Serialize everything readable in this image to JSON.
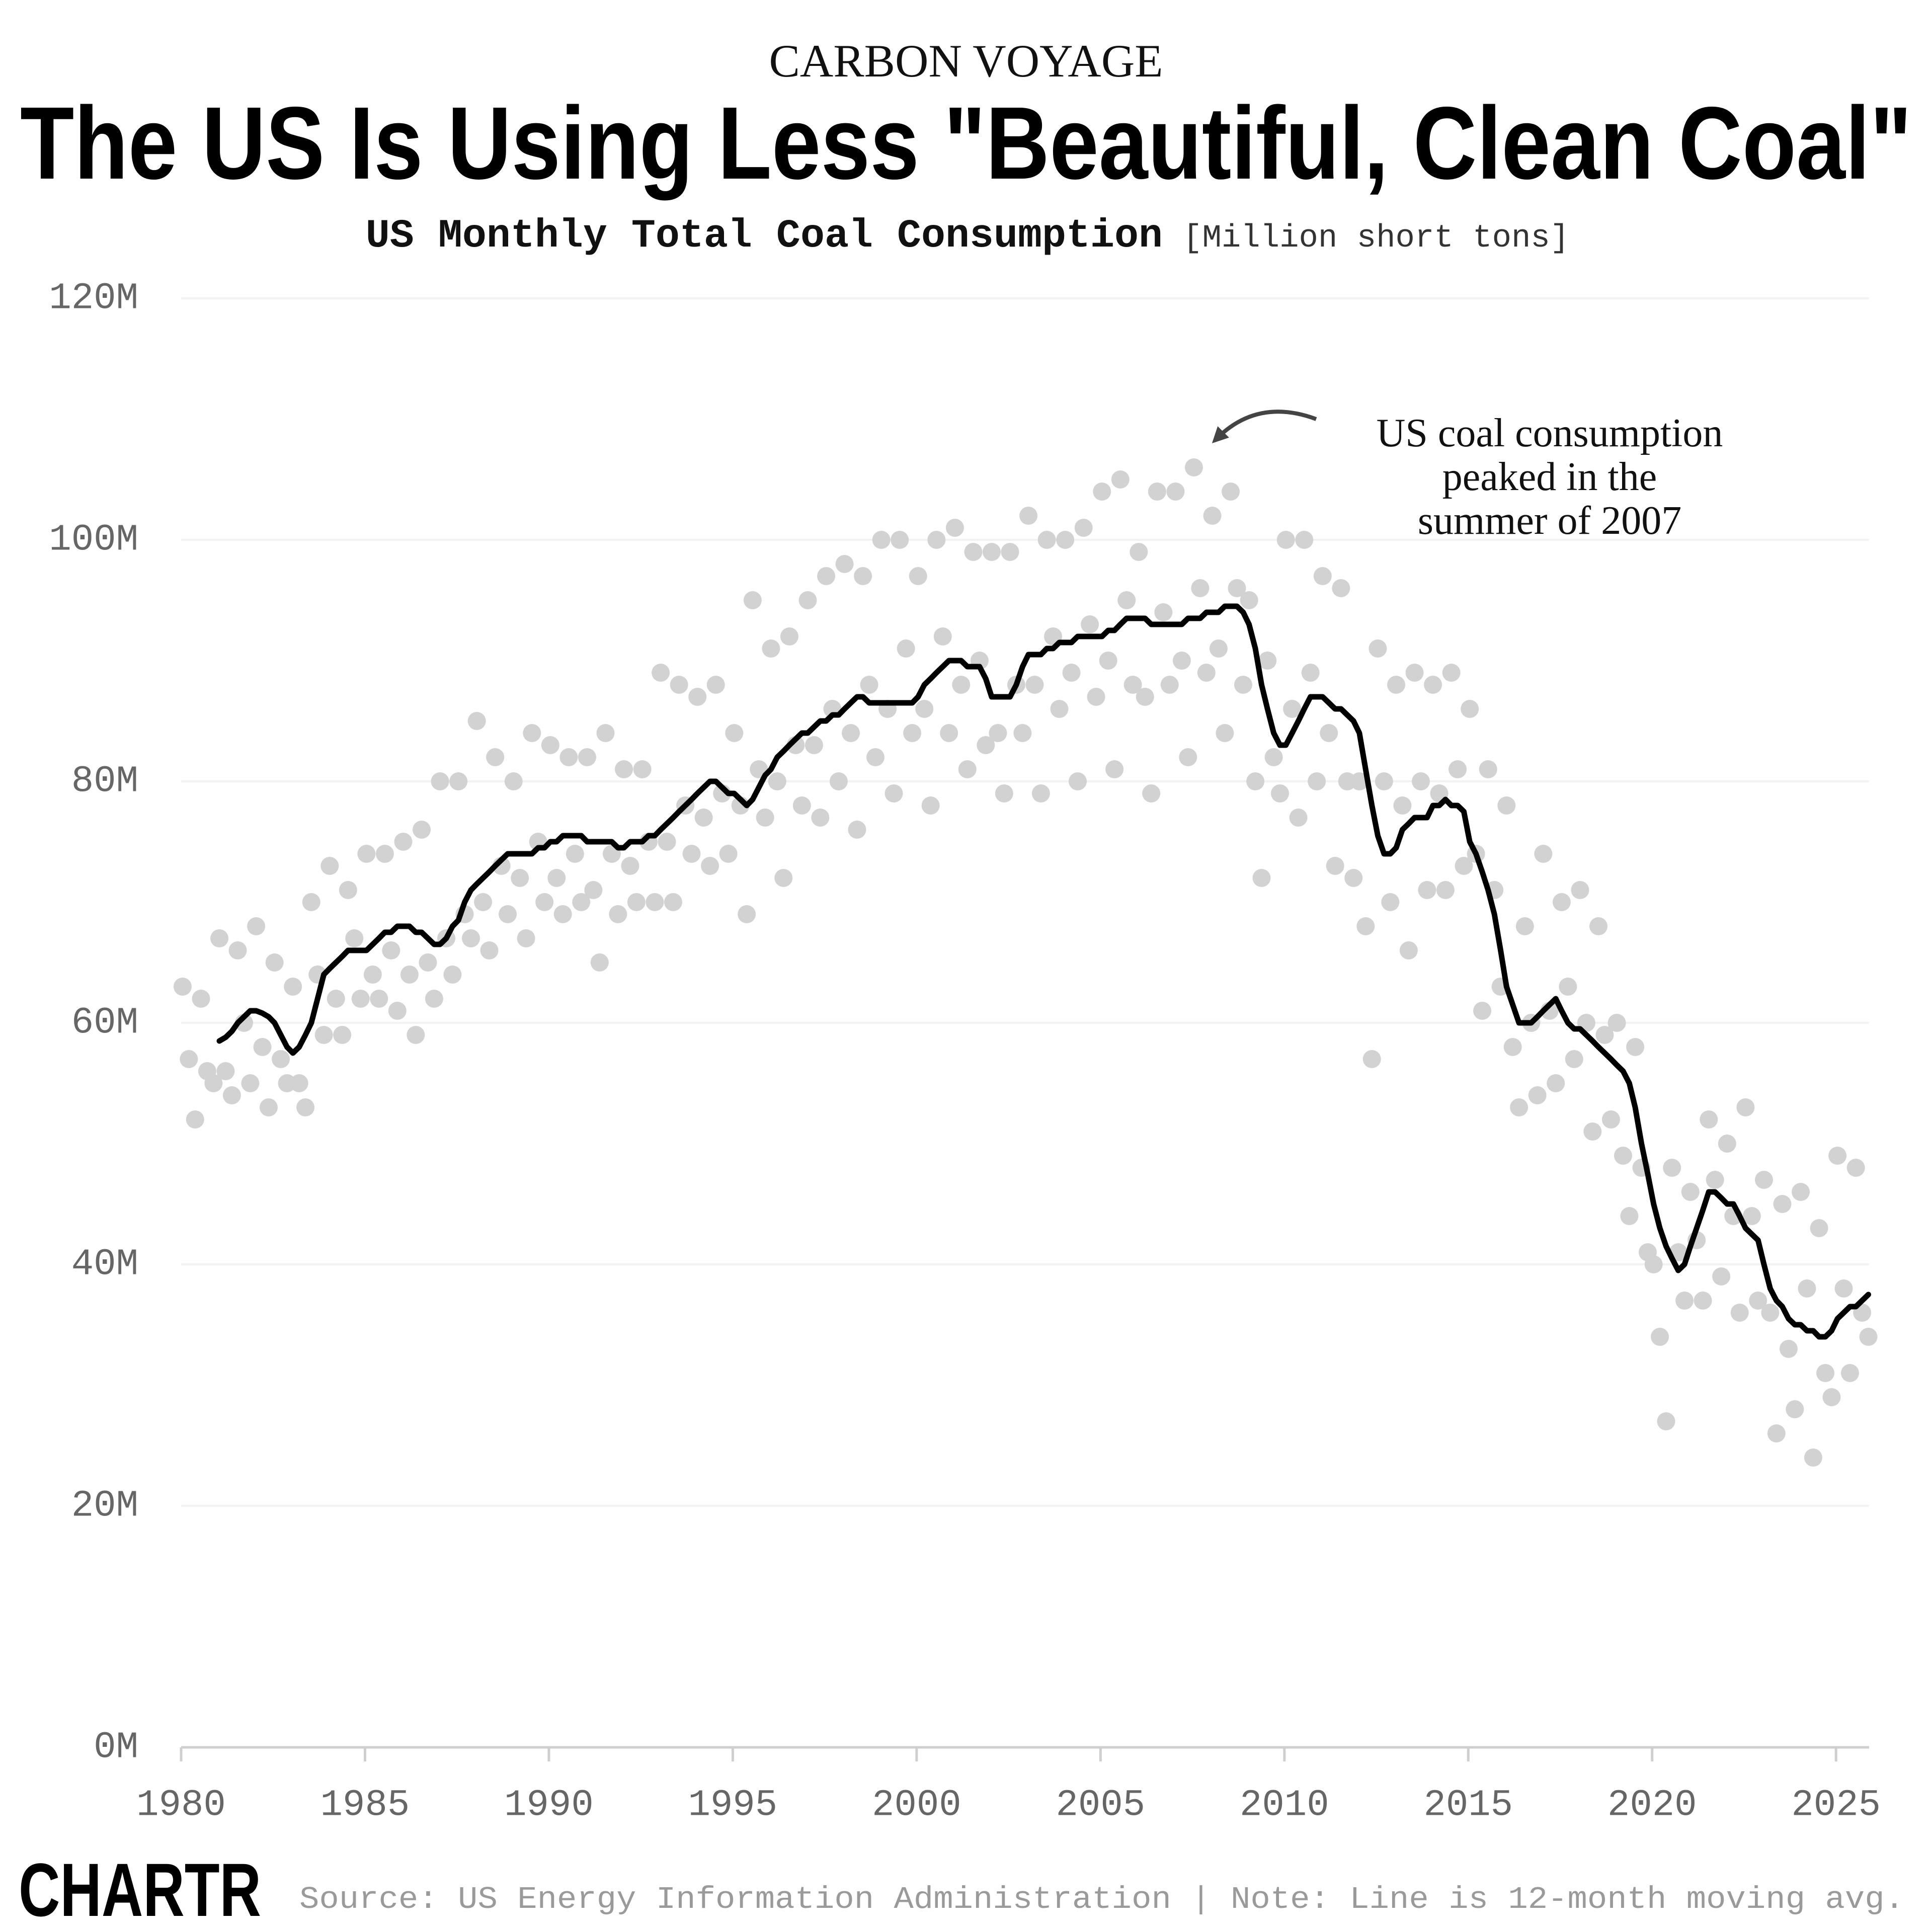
{
  "chart_data": {
    "type": "scatter",
    "kicker": "CARBON VOYAGE",
    "title": "The US Is Using Less \"Beautiful, Clean Coal\"",
    "subtitle": "US Monthly Total Coal Consumption",
    "unit": "[Million short tons]",
    "annotation": [
      "US coal consumption",
      "peaked in the",
      "summer of 2007"
    ],
    "logo": "CHARTR",
    "source": "Source: US Energy Information Administration | Note: Line is 12-month moving avg.",
    "xlim": [
      1980,
      2025.9
    ],
    "xticks": [
      1980,
      1985,
      1990,
      1995,
      2000,
      2005,
      2010,
      2015,
      2020,
      2025
    ],
    "ylim": [
      0,
      120
    ],
    "yticks": [
      {
        "value": 0,
        "label": "0M"
      },
      {
        "value": 20,
        "label": "20M"
      },
      {
        "value": 40,
        "label": "40M"
      },
      {
        "value": 60,
        "label": "60M"
      },
      {
        "value": 80,
        "label": "80M"
      },
      {
        "value": 100,
        "label": "100M"
      },
      {
        "value": 120,
        "label": "120M"
      }
    ],
    "grid": true,
    "x": [
      1980.04,
      1980.21,
      1980.38,
      1980.54,
      1980.71,
      1980.88,
      1981.04,
      1981.21,
      1981.38,
      1981.54,
      1981.71,
      1981.88,
      1982.04,
      1982.21,
      1982.38,
      1982.54,
      1982.71,
      1982.88,
      1983.04,
      1983.21,
      1983.38,
      1983.54,
      1983.71,
      1983.88,
      1984.04,
      1984.21,
      1984.38,
      1984.54,
      1984.71,
      1984.88,
      1985.04,
      1985.21,
      1985.38,
      1985.54,
      1985.71,
      1985.88,
      1986.04,
      1986.21,
      1986.38,
      1986.54,
      1986.71,
      1986.88,
      1987.04,
      1987.21,
      1987.38,
      1987.54,
      1987.71,
      1987.88,
      1988.04,
      1988.21,
      1988.38,
      1988.54,
      1988.71,
      1988.88,
      1989.04,
      1989.21,
      1989.38,
      1989.54,
      1989.71,
      1989.88,
      1990.04,
      1990.21,
      1990.38,
      1990.54,
      1990.71,
      1990.88,
      1991.04,
      1991.21,
      1991.38,
      1991.54,
      1991.71,
      1991.88,
      1992.04,
      1992.21,
      1992.38,
      1992.54,
      1992.71,
      1992.88,
      1993.04,
      1993.21,
      1993.38,
      1993.54,
      1993.71,
      1993.88,
      1994.04,
      1994.21,
      1994.38,
      1994.54,
      1994.71,
      1994.88,
      1995.04,
      1995.21,
      1995.38,
      1995.54,
      1995.71,
      1995.88,
      1996.04,
      1996.21,
      1996.38,
      1996.54,
      1996.71,
      1996.88,
      1997.04,
      1997.21,
      1997.38,
      1997.54,
      1997.71,
      1997.88,
      1998.04,
      1998.21,
      1998.38,
      1998.54,
      1998.71,
      1998.88,
      1999.04,
      1999.21,
      1999.38,
      1999.54,
      1999.71,
      1999.88,
      2000.04,
      2000.21,
      2000.38,
      2000.54,
      2000.71,
      2000.88,
      2001.04,
      2001.21,
      2001.38,
      2001.54,
      2001.71,
      2001.88,
      2002.04,
      2002.21,
      2002.38,
      2002.54,
      2002.71,
      2002.88,
      2003.04,
      2003.21,
      2003.38,
      2003.54,
      2003.71,
      2003.88,
      2004.04,
      2004.21,
      2004.38,
      2004.54,
      2004.71,
      2004.88,
      2005.04,
      2005.21,
      2005.38,
      2005.54,
      2005.71,
      2005.88,
      2006.04,
      2006.21,
      2006.38,
      2006.54,
      2006.71,
      2006.88,
      2007.04,
      2007.21,
      2007.38,
      2007.54,
      2007.71,
      2007.88,
      2008.04,
      2008.21,
      2008.38,
      2008.54,
      2008.71,
      2008.88,
      2009.04,
      2009.21,
      2009.38,
      2009.54,
      2009.71,
      2009.88,
      2010.04,
      2010.21,
      2010.38,
      2010.54,
      2010.71,
      2010.88,
      2011.04,
      2011.21,
      2011.38,
      2011.54,
      2011.71,
      2011.88,
      2012.04,
      2012.21,
      2012.38,
      2012.54,
      2012.71,
      2012.88,
      2013.04,
      2013.21,
      2013.38,
      2013.54,
      2013.71,
      2013.88,
      2014.04,
      2014.21,
      2014.38,
      2014.54,
      2014.71,
      2014.88,
      2015.04,
      2015.21,
      2015.38,
      2015.54,
      2015.71,
      2015.88,
      2016.04,
      2016.21,
      2016.38,
      2016.54,
      2016.71,
      2016.88,
      2017.04,
      2017.21,
      2017.38,
      2017.54,
      2017.71,
      2017.88,
      2018.04,
      2018.21,
      2018.38,
      2018.54,
      2018.71,
      2018.88,
      2019.04,
      2019.21,
      2019.38,
      2019.54,
      2019.71,
      2019.88,
      2020.04,
      2020.21,
      2020.38,
      2020.54,
      2020.71,
      2020.88,
      2021.04,
      2021.21,
      2021.38,
      2021.54,
      2021.71,
      2021.88,
      2022.04,
      2022.21,
      2022.38,
      2022.54,
      2022.71,
      2022.88,
      2023.04,
      2023.21,
      2023.38,
      2023.54,
      2023.71,
      2023.88,
      2024.04,
      2024.21,
      2024.38,
      2024.54,
      2024.71,
      2024.88,
      2025.04,
      2025.21,
      2025.38,
      2025.54,
      2025.71,
      2025.88
    ],
    "series": [
      {
        "type": "scatter",
        "color": "#d2d2d2",
        "values": [
          63,
          57,
          52,
          62,
          56,
          55,
          67,
          56,
          54,
          66,
          60,
          55,
          68,
          58,
          53,
          65,
          57,
          55,
          63,
          55,
          53,
          70,
          64,
          59,
          73,
          62,
          59,
          71,
          67,
          62,
          74,
          64,
          62,
          74,
          66,
          61,
          75,
          64,
          59,
          76,
          65,
          62,
          80,
          67,
          64,
          80,
          69,
          67,
          85,
          70,
          66,
          82,
          73,
          69,
          80,
          72,
          67,
          84,
          75,
          70,
          83,
          72,
          69,
          82,
          74,
          70,
          82,
          71,
          65,
          84,
          74,
          69,
          81,
          73,
          70,
          81,
          75,
          70,
          89,
          75,
          70,
          88,
          78,
          74,
          87,
          77,
          73,
          88,
          79,
          74,
          84,
          78,
          69,
          95,
          81,
          77,
          91,
          80,
          72,
          92,
          83,
          78,
          95,
          83,
          77,
          97,
          86,
          80,
          98,
          84,
          76,
          97,
          88,
          82,
          100,
          86,
          79,
          100,
          91,
          84,
          97,
          86,
          78,
          100,
          92,
          84,
          101,
          88,
          81,
          99,
          90,
          83,
          99,
          84,
          79,
          99,
          88,
          84,
          102,
          88,
          79,
          100,
          92,
          86,
          100,
          89,
          80,
          101,
          93,
          87,
          104,
          90,
          81,
          105,
          95,
          88,
          99,
          87,
          79,
          104,
          94,
          88,
          104,
          90,
          82,
          106,
          96,
          89,
          102,
          91,
          84,
          104,
          96,
          88,
          95,
          80,
          72,
          90,
          82,
          79,
          100,
          86,
          77,
          100,
          89,
          80,
          97,
          84,
          73,
          96,
          80,
          72,
          80,
          68,
          57,
          91,
          80,
          70,
          88,
          78,
          66,
          89,
          80,
          71,
          88,
          79,
          71,
          89,
          81,
          73,
          86,
          74,
          61,
          81,
          71,
          63,
          78,
          58,
          53,
          68,
          60,
          54,
          74,
          61,
          55,
          70,
          63,
          57,
          71,
          60,
          51,
          68,
          59,
          52,
          60,
          49,
          44,
          58,
          48,
          41,
          40,
          34,
          27,
          48,
          41,
          37,
          46,
          42,
          37,
          52,
          47,
          39,
          50,
          44,
          36,
          53,
          44,
          37,
          47,
          36,
          26,
          45,
          33,
          28,
          46,
          38,
          24,
          43,
          31,
          29,
          49,
          38,
          31,
          48,
          36,
          34
        ]
      },
      {
        "type": "line",
        "color": "#000000",
        "values": [
          null,
          null,
          null,
          null,
          null,
          null,
          58.5,
          58.8,
          59.3,
          60,
          60.5,
          61,
          61,
          60.8,
          60.5,
          60,
          59,
          58,
          57.5,
          58,
          59,
          60,
          62,
          64,
          64.5,
          65,
          65.5,
          66,
          66,
          66,
          66,
          66.5,
          67,
          67.5,
          67.5,
          68,
          68,
          68,
          67.5,
          67.5,
          67,
          66.5,
          66.5,
          67,
          68,
          68.5,
          70,
          71,
          71.5,
          72,
          72.5,
          73,
          73.5,
          74,
          74,
          74,
          74,
          74,
          74.5,
          74.5,
          75,
          75,
          75.5,
          75.5,
          75.5,
          75.5,
          75,
          75,
          75,
          75,
          75,
          74.5,
          74.5,
          75,
          75,
          75,
          75.5,
          75.5,
          76,
          76.5,
          77,
          77.5,
          78,
          78.5,
          79,
          79.5,
          80,
          80,
          79.5,
          79,
          79,
          78.5,
          78,
          78.5,
          79.5,
          80.5,
          81,
          82,
          82.5,
          83,
          83.5,
          84,
          84,
          84.5,
          85,
          85,
          85.5,
          85.5,
          86,
          86.5,
          87,
          87,
          86.5,
          86.5,
          86.5,
          86.5,
          86.5,
          86.5,
          86.5,
          86.5,
          87,
          88,
          88.5,
          89,
          89.5,
          90,
          90,
          90,
          89.5,
          89.5,
          89.5,
          88.5,
          87,
          87,
          87,
          87,
          88,
          89.5,
          90.5,
          90.5,
          90.5,
          91,
          91,
          91.5,
          91.5,
          91.5,
          92,
          92,
          92,
          92,
          92,
          92.5,
          92.5,
          93,
          93.5,
          93.5,
          93.5,
          93.5,
          93,
          93,
          93,
          93,
          93,
          93,
          93.5,
          93.5,
          93.5,
          94,
          94,
          94,
          94.5,
          94.5,
          94.5,
          94,
          93,
          91,
          88,
          86,
          84,
          83,
          83,
          84,
          85,
          86,
          87,
          87,
          87,
          86.5,
          86,
          86,
          85.5,
          85,
          84,
          81,
          78,
          75.5,
          74,
          74,
          74.5,
          76,
          76.5,
          77,
          77,
          77,
          78,
          78,
          78.5,
          78,
          78,
          77.5,
          75,
          74,
          72.5,
          71,
          69,
          66,
          63,
          61.5,
          60,
          60,
          60,
          60.5,
          61,
          61.5,
          62,
          61,
          60,
          59.5,
          59.5,
          59,
          58.5,
          58,
          57.5,
          57,
          56.5,
          56,
          55,
          53,
          50,
          47.5,
          45,
          43,
          41.5,
          40.5,
          39.5,
          40,
          41.5,
          43,
          44.5,
          46,
          46,
          45.5,
          45,
          45,
          44,
          43,
          42.5,
          42,
          40,
          38,
          37,
          36.5,
          35.5,
          35,
          35,
          34.5,
          34.5,
          34,
          34,
          34.5,
          35.5,
          36,
          36.5,
          36.5,
          37,
          37.5
        ]
      }
    ]
  }
}
